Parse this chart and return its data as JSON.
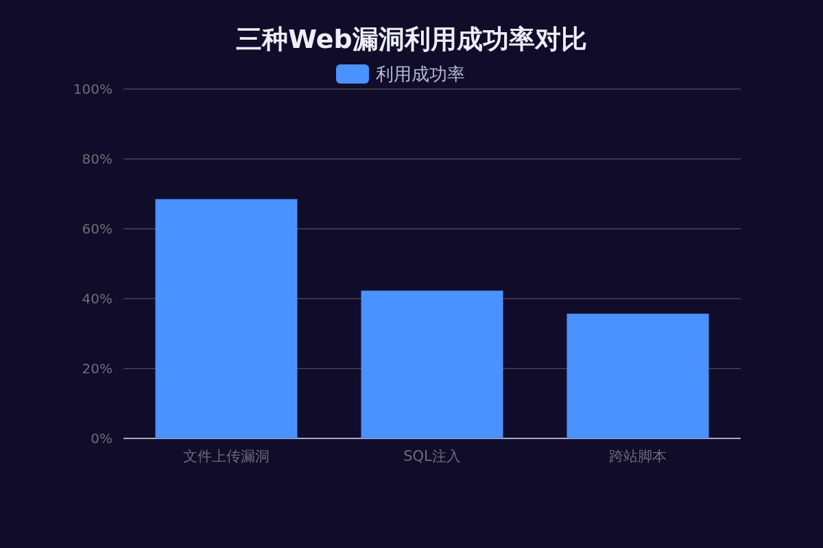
{
  "chart_data": {
    "type": "bar",
    "title": "三种Web漏洞利用成功率对比",
    "categories": [
      "文件上传漏洞",
      "SQL注入",
      "跨站脚本"
    ],
    "series": [
      {
        "name": "利用成功率",
        "color": "#4992ff",
        "values": [
          68.5,
          42.3,
          35.7
        ]
      }
    ],
    "ylim": [
      0,
      100
    ],
    "yticks": [
      {
        "value": 0,
        "label": "0%"
      },
      {
        "value": 20,
        "label": "20%"
      },
      {
        "value": 40,
        "label": "40%"
      },
      {
        "value": 60,
        "label": "60%"
      },
      {
        "value": 80,
        "label": "80%"
      },
      {
        "value": 100,
        "label": "100%"
      }
    ],
    "grid": "y",
    "legend": "top"
  }
}
